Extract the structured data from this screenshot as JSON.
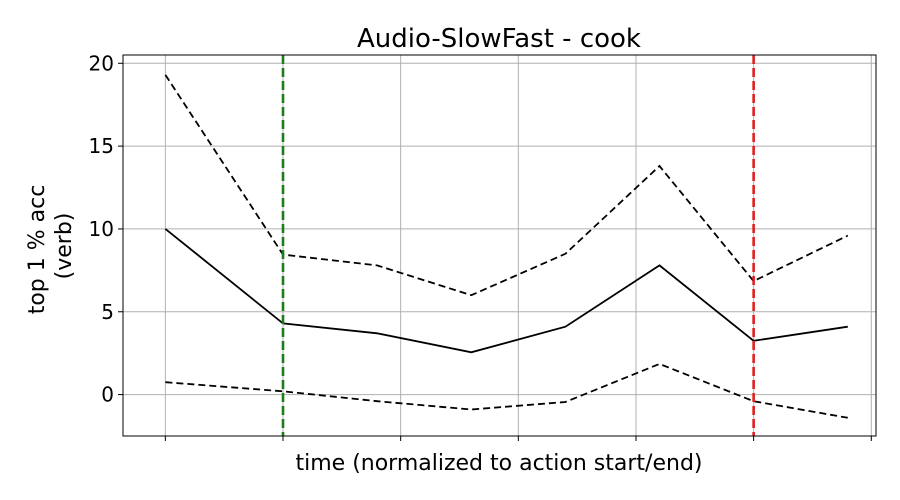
{
  "chart_data": {
    "type": "line",
    "title": "Audio-SlowFast - cook",
    "xlabel": "time (normalized to action start/end)",
    "ylabel_lines": [
      "top 1 % acc",
      "(verb)"
    ],
    "xlim": [
      -0.7,
      7.3
    ],
    "ylim": [
      -2.5,
      20.5
    ],
    "yticks": [
      0,
      5,
      10,
      15,
      20
    ],
    "xticks": [
      -0.25,
      1.0,
      2.25,
      3.5,
      4.75,
      6.0,
      7.25
    ],
    "grid": true,
    "series": [
      {
        "role": "mean",
        "style": "solid",
        "x": [
          -0.25,
          1.0,
          2.0,
          3.0,
          4.0,
          5.0,
          6.0,
          7.0
        ],
        "values": [
          10.0,
          4.3,
          3.7,
          2.55,
          4.1,
          7.8,
          3.25,
          4.1
        ]
      },
      {
        "role": "upper",
        "style": "dashed",
        "x": [
          -0.25,
          1.0,
          2.0,
          3.0,
          4.0,
          5.0,
          6.0,
          7.0
        ],
        "values": [
          19.3,
          8.45,
          7.8,
          6.0,
          8.5,
          13.8,
          6.85,
          9.6
        ]
      },
      {
        "role": "lower",
        "style": "dashed",
        "x": [
          -0.25,
          1.0,
          2.0,
          3.0,
          4.0,
          5.0,
          6.0,
          7.0
        ],
        "values": [
          0.75,
          0.2,
          -0.4,
          -0.9,
          -0.45,
          1.85,
          -0.4,
          -1.4
        ]
      }
    ],
    "vlines": [
      {
        "name": "action-start",
        "x": 1.0,
        "color": "#1a7f1a"
      },
      {
        "name": "action-end",
        "x": 6.0,
        "color": "#e02020"
      }
    ]
  }
}
